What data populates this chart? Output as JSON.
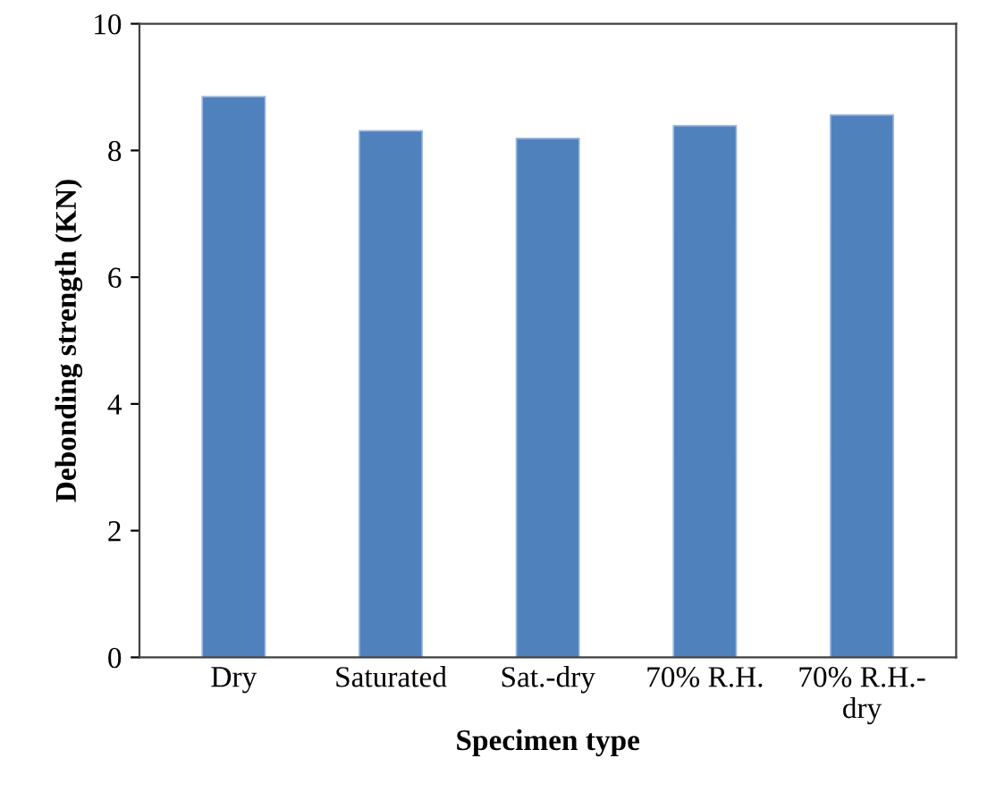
{
  "chart_data": {
    "type": "bar",
    "xlabel": "Specimen type",
    "ylabel": "Debonding strength (KN)",
    "categories": [
      "Dry",
      "Saturated",
      "Sat.-dry",
      "70% R.H.",
      "70% R.H.-\ndry"
    ],
    "values": [
      8.85,
      8.31,
      8.19,
      8.39,
      8.56
    ],
    "color": "#4f81bd",
    "ylim": [
      0,
      10
    ],
    "yticks": [
      0,
      2,
      4,
      6,
      8,
      10
    ]
  }
}
